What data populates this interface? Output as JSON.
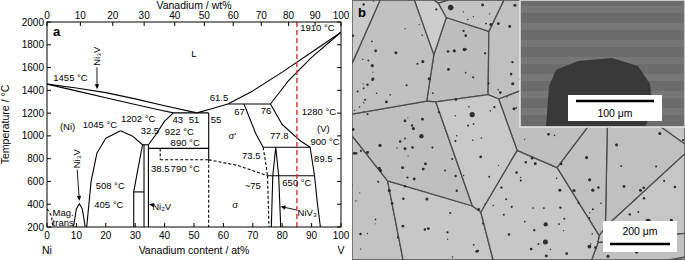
{
  "chart_data": {
    "type": "line",
    "panel_label": "a",
    "x_label": "Vanadium content / at%",
    "x2_label": "Vanadium / wt%",
    "y_label": "Temperature / °C",
    "x_end_labels": [
      "Ni",
      "V"
    ],
    "xlim": [
      0,
      100
    ],
    "xticks": [
      0,
      10,
      20,
      30,
      40,
      50,
      60,
      70,
      80,
      90,
      100
    ],
    "x2lim": [
      0,
      100
    ],
    "x2ticks": [
      0,
      {
        "value": 11.35,
        "label": "10"
      },
      {
        "value": 22.36,
        "label": "20"
      },
      {
        "value": 33.05,
        "label": "30"
      },
      {
        "value": 43.44,
        "label": "40"
      },
      {
        "value": 53.53,
        "label": "50"
      },
      {
        "value": 63.35,
        "label": "60"
      },
      {
        "value": 72.89,
        "label": "70"
      },
      {
        "value": 82.17,
        "label": "80"
      },
      {
        "value": 91.2,
        "label": "90"
      },
      100
    ],
    "ylim": [
      200,
      2000
    ],
    "yticks": [
      200,
      400,
      600,
      800,
      1000,
      1200,
      1400,
      1600,
      1800,
      2000
    ],
    "grid": false,
    "color": "#000000",
    "series": [
      {
        "x": [
          0,
          10,
          20,
          30,
          40,
          51
        ],
        "values": [
          1455,
          1420,
          1380,
          1325,
          1265,
          1202
        ],
        "line_style": "solid"
      },
      {
        "x": [
          0,
          10,
          20,
          30,
          38,
          43
        ],
        "values": [
          1455,
          1395,
          1335,
          1275,
          1230,
          1202
        ],
        "line_style": "solid"
      },
      {
        "x": [
          51,
          56,
          61.5,
          70,
          80,
          90,
          100
        ],
        "values": [
          1202,
          1238,
          1280,
          1395,
          1560,
          1735,
          1910
        ],
        "line_style": "solid"
      },
      {
        "x": [
          76,
          82,
          90,
          100
        ],
        "values": [
          1280,
          1480,
          1690,
          1910
        ],
        "line_style": "solid"
      },
      {
        "x": [
          43,
          55
        ],
        "values": [
          1202,
          1202
        ],
        "line_style": "solid"
      },
      {
        "x": [
          61.5,
          76
        ],
        "values": [
          1280,
          1280
        ],
        "line_style": "solid"
      },
      {
        "x": [
          43,
          40,
          37,
          34.5
        ],
        "values": [
          1202,
          1130,
          1010,
          922
        ],
        "line_style": "solid"
      },
      {
        "x": [
          13.5,
          15,
          17,
          20,
          25
        ],
        "values": [
          200,
          600,
          850,
          980,
          1045
        ],
        "line_style": "solid"
      },
      {
        "x": [
          25,
          29,
          32.5
        ],
        "values": [
          1045,
          1000,
          922
        ],
        "line_style": "solid"
      },
      {
        "x": [
          32.5,
          31,
          29.5,
          29.5
        ],
        "values": [
          922,
          720,
          508,
          200
        ],
        "line_style": "solid"
      },
      {
        "x": [
          32.5,
          34.5
        ],
        "values": [
          922,
          922
        ],
        "line_style": "solid"
      },
      {
        "x": [
          33,
          33
        ],
        "values": [
          922,
          200
        ],
        "line_style": "solid"
      },
      {
        "x": [
          34.5,
          34.5
        ],
        "values": [
          922,
          200
        ],
        "line_style": "solid"
      },
      {
        "x": [
          29.5,
          33
        ],
        "values": [
          508,
          508
        ],
        "line_style": "solid"
      },
      {
        "x": [
          34.5,
          55
        ],
        "values": [
          890,
          890
        ],
        "line_style": "solid"
      },
      {
        "x": [
          38.5,
          55
        ],
        "values": [
          790,
          790
        ],
        "line_style": "dashed"
      },
      {
        "x": [
          38.5,
          38.5
        ],
        "values": [
          890,
          790
        ],
        "line_style": "dashed"
      },
      {
        "x": [
          55,
          55
        ],
        "values": [
          1202,
          790
        ],
        "line_style": "solid"
      },
      {
        "x": [
          67,
          69,
          71,
          73.5
        ],
        "values": [
          1280,
          1150,
          1020,
          900
        ],
        "line_style": "solid"
      },
      {
        "x": [
          73.5,
          89.5
        ],
        "values": [
          900,
          900
        ],
        "line_style": "solid"
      },
      {
        "x": [
          76,
          80,
          86,
          89.5,
          91,
          92,
          93
        ],
        "values": [
          1280,
          1100,
          960,
          900,
          650,
          400,
          200
        ],
        "line_style": "solid"
      },
      {
        "x": [
          55,
          55
        ],
        "values": [
          790,
          200
        ],
        "line_style": "dashed"
      },
      {
        "x": [
          55,
          65,
          75
        ],
        "values": [
          790,
          740,
          650
        ],
        "line_style": "dashed"
      },
      {
        "x": [
          73.5,
          74.3,
          75
        ],
        "values": [
          900,
          780,
          650
        ],
        "line_style": "dashed"
      },
      {
        "x": [
          75,
          91
        ],
        "values": [
          650,
          650
        ],
        "line_style": "solid"
      },
      {
        "x": [
          75,
          75.5
        ],
        "values": [
          650,
          200
        ],
        "line_style": "dashed"
      },
      {
        "x": [
          76.3,
          76.8,
          77.8,
          78.8,
          79.5
        ],
        "values": [
          200,
          650,
          900,
          650,
          200
        ],
        "line_style": "solid"
      },
      {
        "x": [
          9,
          10,
          11,
          12,
          13
        ],
        "values": [
          200,
          360,
          405,
          360,
          200
        ],
        "line_style": "solid"
      },
      {
        "x": [
          0,
          1.5,
          2
        ],
        "values": [
          360,
          300,
          200
        ],
        "line_style": "dashed"
      }
    ],
    "composition_line": {
      "x": 85,
      "color": "#e0302a",
      "line_style": "dashed"
    },
    "annotations": [
      {
        "text": "L",
        "x": 50,
        "y": 1720
      },
      {
        "text": "(Ni)",
        "x": 7,
        "y": 1080
      },
      {
        "text": "(V)",
        "x": 94,
        "y": 1060
      },
      {
        "text": "1455 °C",
        "x": 8,
        "y": 1510
      },
      {
        "text": "1910 °C",
        "x": 92,
        "y": 1950
      },
      {
        "text": "Ni₃V",
        "x": 17,
        "y": 1700,
        "orientation": "vertical",
        "arrow": {
          "x": 17,
          "y": 1410
        }
      },
      {
        "text": "1202 °C",
        "x": 31,
        "y": 1150
      },
      {
        "text": "43",
        "x": 44.5,
        "y": 1140
      },
      {
        "text": "51",
        "x": 50,
        "y": 1140
      },
      {
        "text": "55",
        "x": 57.5,
        "y": 1140
      },
      {
        "text": "61.5",
        "x": 58.5,
        "y": 1335
      },
      {
        "text": "67",
        "x": 65.5,
        "y": 1215
      },
      {
        "text": "76",
        "x": 74.5,
        "y": 1225
      },
      {
        "text": "1280 °C",
        "x": 92.5,
        "y": 1210
      },
      {
        "text": "1045 °C",
        "x": 18,
        "y": 1100
      },
      {
        "text": "32.5",
        "x": 35,
        "y": 1050
      },
      {
        "text": "922 °C",
        "x": 45,
        "y": 1038
      },
      {
        "text": "890 °C",
        "x": 47,
        "y": 938
      },
      {
        "text": "38.5",
        "x": 38.5,
        "y": 710
      },
      {
        "text": "790 °C",
        "x": 47,
        "y": 710
      },
      {
        "text": "508 °C",
        "x": 21.5,
        "y": 560
      },
      {
        "text": "σ'",
        "x": 63,
        "y": 1000
      },
      {
        "text": "73.5",
        "x": 69.5,
        "y": 830
      },
      {
        "text": "~75",
        "x": 70,
        "y": 560
      },
      {
        "text": "σ",
        "x": 64,
        "y": 400
      },
      {
        "text": "77.8",
        "x": 79,
        "y": 1000
      },
      {
        "text": "900 °C",
        "x": 94.6,
        "y": 950
      },
      {
        "text": "89.5",
        "x": 94,
        "y": 800
      },
      {
        "text": "650 °C",
        "x": 85,
        "y": 590
      },
      {
        "text": "NiV₃",
        "x": 88.5,
        "y": 330,
        "arrow": {
          "x": 79.4,
          "y": 380
        }
      },
      {
        "text": "Ni₂V",
        "x": 39,
        "y": 380,
        "arrow": {
          "x": 34.7,
          "y": 400
        }
      },
      {
        "text": "405 °C",
        "x": 21,
        "y": 400
      },
      {
        "text": "Ni₃V",
        "x": 10,
        "y": 800,
        "orientation": "vertical",
        "arrow": {
          "x": 11,
          "y": 430
        }
      },
      {
        "text": "Mag.",
        "x": 5.5,
        "y": 330
      },
      {
        "text": "trans",
        "x": 5.5,
        "y": 240
      }
    ]
  },
  "micrograph": {
    "panel_label": "b",
    "scale_bar": "200 μm",
    "inset_scale_bar": "100 μm"
  }
}
